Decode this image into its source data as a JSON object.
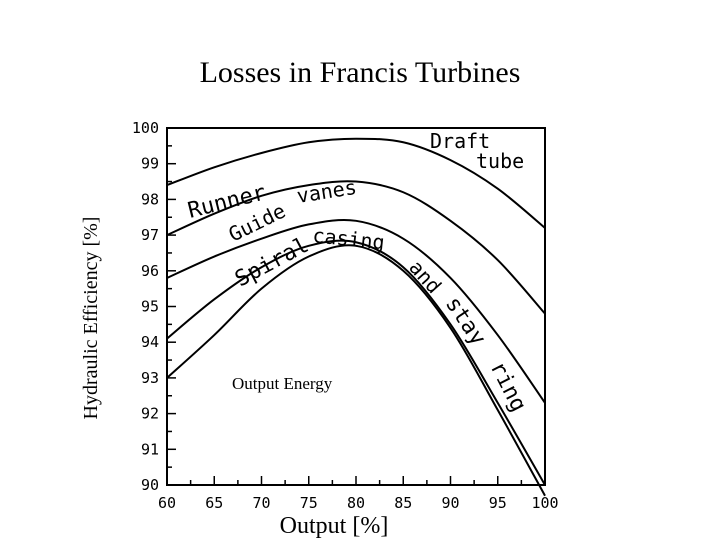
{
  "chart_data": {
    "type": "line",
    "title": "Losses in Francis Turbines",
    "xlabel": "Output  [%]",
    "ylabel": "Hydraulic Efficiency [%]",
    "xlim": [
      60,
      100
    ],
    "ylim": [
      90,
      100
    ],
    "xticks": [
      60,
      65,
      70,
      75,
      80,
      85,
      90,
      95,
      100
    ],
    "yticks": [
      90,
      91,
      92,
      93,
      94,
      95,
      96,
      97,
      98,
      99,
      100
    ],
    "grid": false,
    "series": [
      {
        "x": [
          60,
          65,
          70,
          75,
          80,
          85,
          90,
          95,
          100
        ],
        "values": [
          98.4,
          98.9,
          99.3,
          99.6,
          99.7,
          99.6,
          99.1,
          98.3,
          97.2
        ]
      },
      {
        "x": [
          60,
          65,
          70,
          75,
          80,
          85,
          90,
          95,
          100
        ],
        "values": [
          97.0,
          97.6,
          98.1,
          98.4,
          98.5,
          98.2,
          97.4,
          96.3,
          94.8
        ]
      },
      {
        "x": [
          60,
          65,
          70,
          75,
          80,
          85,
          90,
          95,
          100
        ],
        "values": [
          95.8,
          96.4,
          96.9,
          97.3,
          97.4,
          96.9,
          95.8,
          94.2,
          92.3
        ]
      },
      {
        "x": [
          60,
          65,
          70,
          75,
          80,
          85,
          90,
          95,
          100
        ],
        "values": [
          94.1,
          95.2,
          96.1,
          96.7,
          96.8,
          96.1,
          94.5,
          92.3,
          90.0
        ]
      },
      {
        "x": [
          60,
          65,
          70,
          75,
          80,
          85,
          90,
          95,
          100
        ],
        "values": [
          93.0,
          94.2,
          95.5,
          96.4,
          96.7,
          96.0,
          94.4,
          92.1,
          89.7
        ]
      }
    ],
    "annotations": [
      "Draft",
      "tube",
      "Runner",
      "Guide",
      "vanes",
      "Spiral",
      "casing",
      "and",
      "stay",
      "ring",
      "Output Energy"
    ]
  }
}
